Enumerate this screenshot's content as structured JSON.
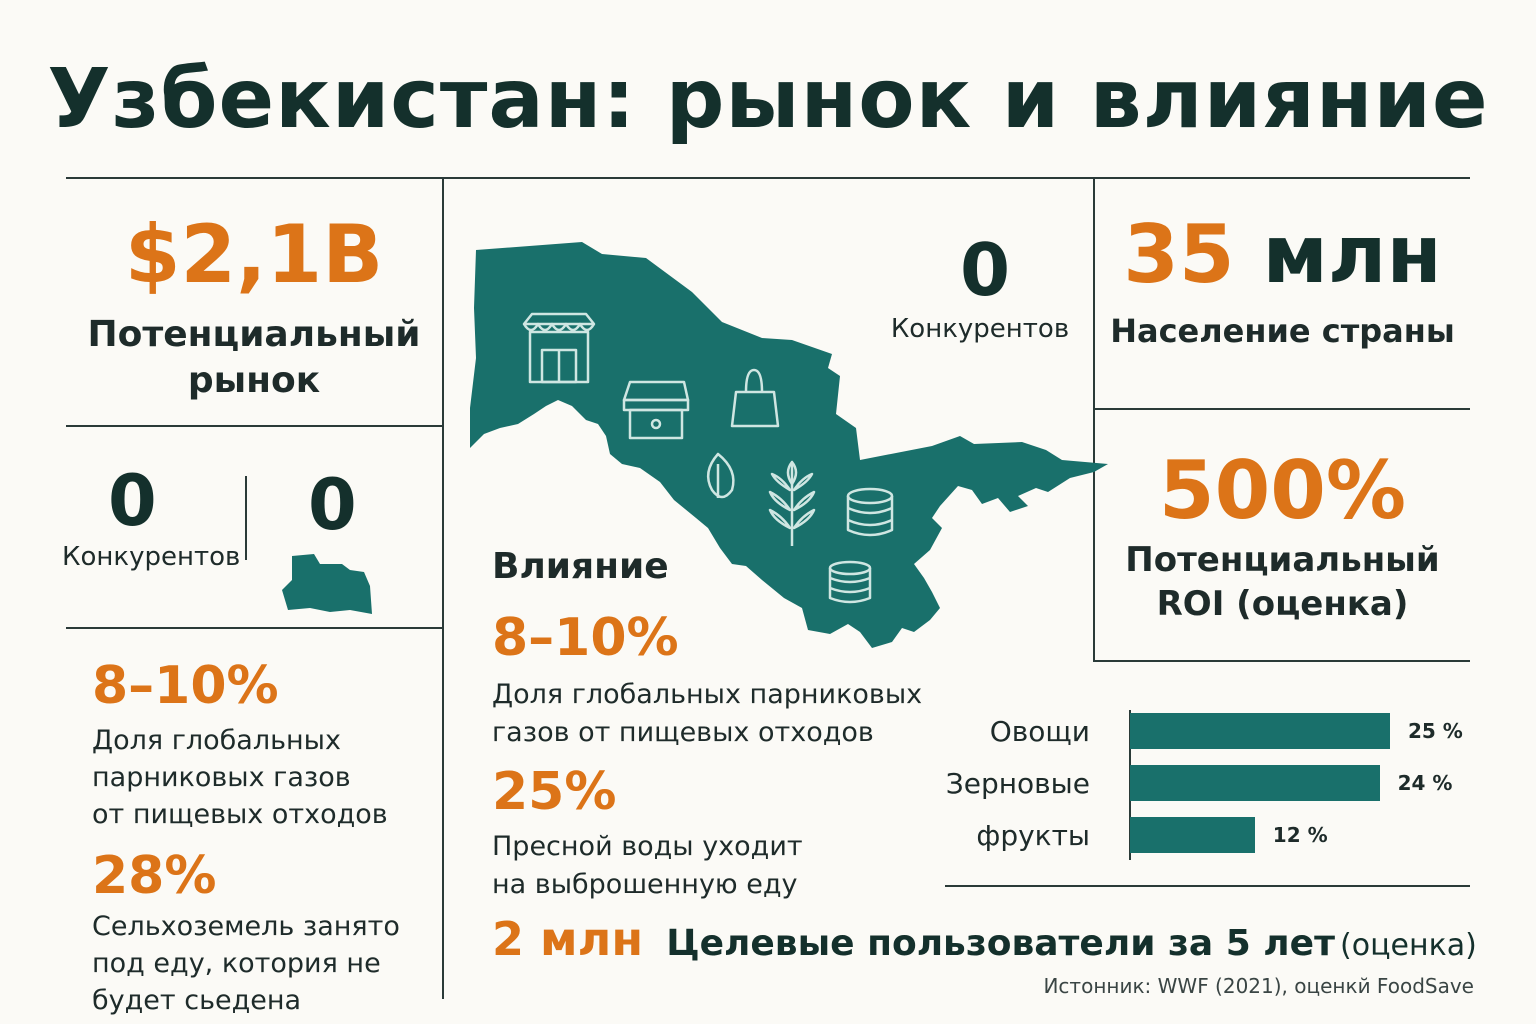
{
  "title": "Узбекистан: рынок и влияние",
  "market": {
    "value": "$2,1B",
    "label_line1": "Потенциальный",
    "label_line2": "рынок"
  },
  "competitors_left": {
    "value": "0",
    "label": "Конкурентов"
  },
  "small_zero": {
    "value": "0"
  },
  "competitors_center": {
    "value": "0",
    "label": "Конкурентов"
  },
  "population": {
    "value_num": "35",
    "value_unit": "млн",
    "label": "Население страны"
  },
  "roi": {
    "value": "500%",
    "label_line1": "Потенциальный",
    "label_line2": "ROI (оценка)"
  },
  "left_stats": [
    {
      "value": "8–10%",
      "lines": [
        "Доля глобальных",
        "парниковых газов",
        "от пищевых отходов"
      ]
    },
    {
      "value": "28%",
      "lines": [
        "Сельхоземель занято",
        "под еду, котория не",
        "будет сьедена"
      ]
    }
  ],
  "impact": {
    "heading": "Влияние",
    "stats": [
      {
        "value": "8–10%",
        "lines": [
          "Доля глобальных парниковых",
          "газов от пищевых отходов"
        ]
      },
      {
        "value": "25%",
        "lines": [
          "Пресной воды уходит",
          "на выброшенную еду"
        ]
      }
    ],
    "users_value": "2 млн",
    "users_label": "Целевые пользователи за 5 лет",
    "users_note": "(оценка)"
  },
  "chart_data": {
    "type": "bar",
    "orientation": "horizontal",
    "categories": [
      "Овощи",
      "Зерновые",
      "фрукты"
    ],
    "values": [
      25,
      24,
      12
    ],
    "value_labels": [
      "25 %",
      "24 %",
      "12 %"
    ]
  },
  "source": "Истонник: WWF (2021), оценкй FoodSave",
  "colors": {
    "accent": "#dc7418",
    "map": "#19706b",
    "text": "#14302c"
  },
  "icons": [
    "store-icon",
    "shop-icon",
    "bag-icon",
    "leaf-icon",
    "wheat-icon",
    "coins-icon",
    "coin-stack-icon"
  ]
}
